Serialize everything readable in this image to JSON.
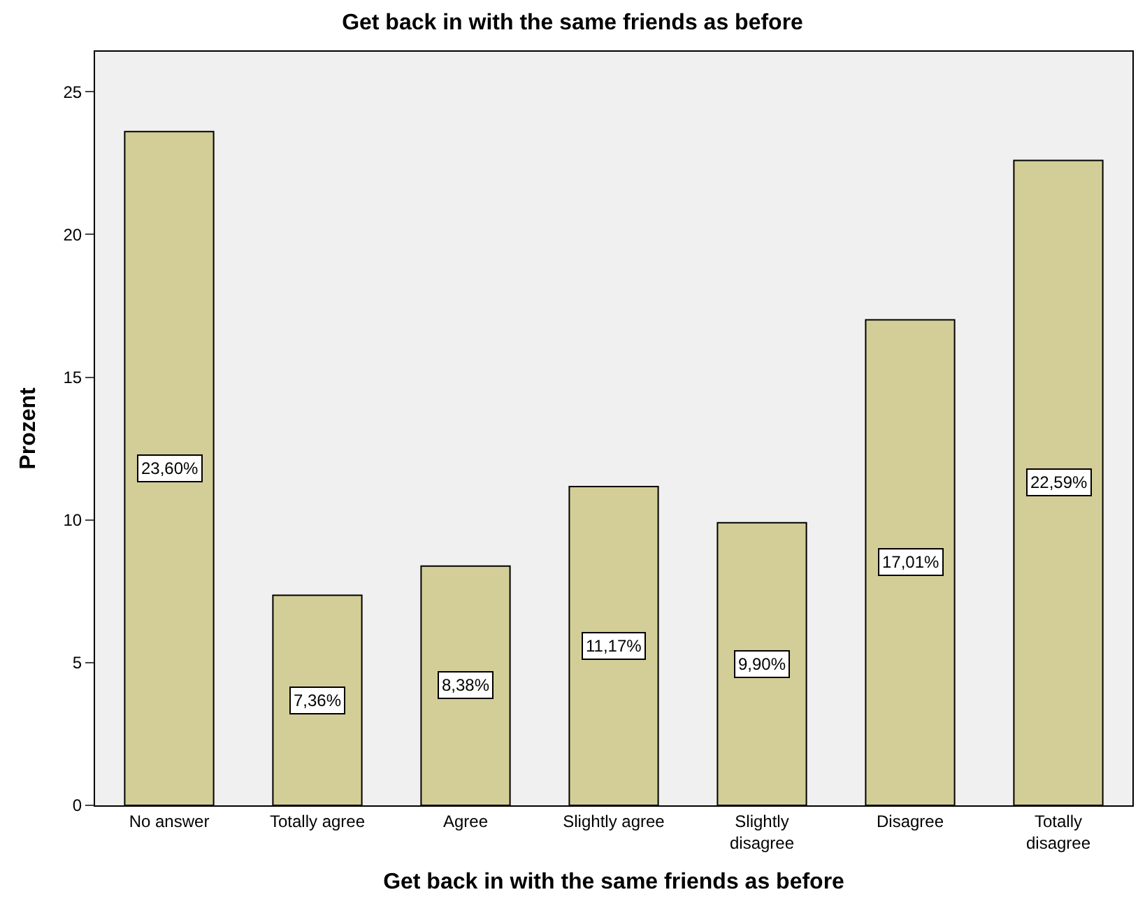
{
  "chart_data": {
    "type": "bar",
    "title": "Get back in with the same friends as before",
    "xlabel": "Get back in with the same friends as before",
    "ylabel": "Prozent",
    "categories": [
      "No answer",
      "Totally agree",
      "Agree",
      "Slightly agree",
      "Slightly disagree",
      "Disagree",
      "Totally disagree"
    ],
    "values": [
      23.6,
      7.36,
      8.38,
      11.17,
      9.9,
      17.01,
      22.59
    ],
    "value_labels": [
      "23,60%",
      "7,36%",
      "8,38%",
      "11,17%",
      "9,90%",
      "17,01%",
      "22,59%"
    ],
    "color": "#d3ce97",
    "ylim": [
      0,
      26.4
    ],
    "yticks": [
      0,
      5,
      10,
      15,
      20,
      25
    ],
    "grid": false,
    "legend": false
  }
}
